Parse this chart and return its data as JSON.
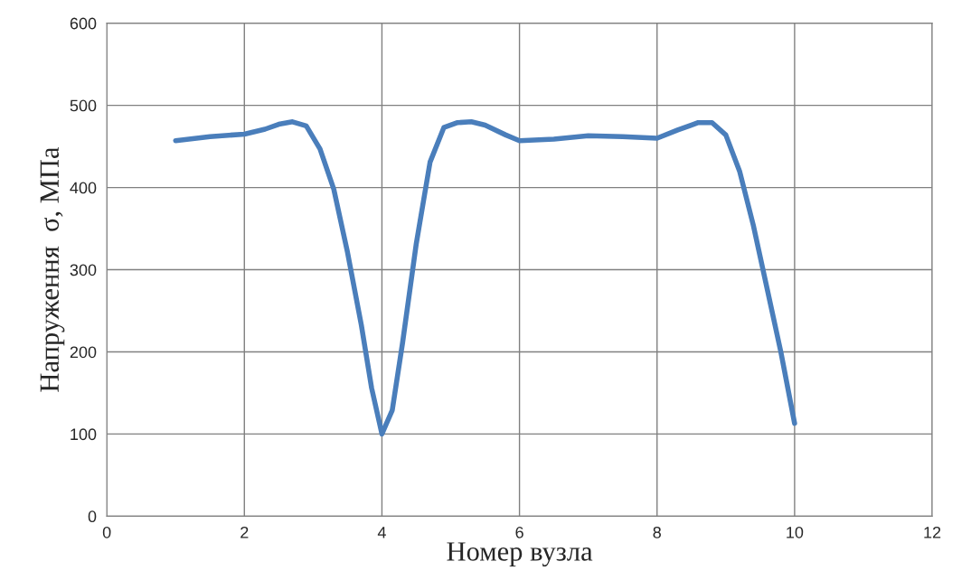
{
  "chart_data": {
    "type": "line",
    "xlabel": "Номер вузла",
    "ylabel": "Напруження  σ, МПа",
    "x": [
      1,
      1.5,
      2,
      2.3,
      2.5,
      2.7,
      2.9,
      3.1,
      3.3,
      3.5,
      3.7,
      3.85,
      4,
      4.15,
      4.3,
      4.5,
      4.7,
      4.9,
      5.1,
      5.3,
      5.5,
      5.8,
      6,
      6.5,
      7,
      7.5,
      8,
      8.3,
      8.6,
      8.8,
      9,
      9.2,
      9.4,
      9.6,
      9.8,
      10
    ],
    "series": [
      {
        "color": "#4a7ebb",
        "values": [
          457,
          462,
          465,
          471,
          477,
          480,
          475,
          447,
          398,
          321,
          233,
          156,
          100,
          129,
          211,
          332,
          431,
          473,
          479,
          480,
          476,
          464,
          457,
          459,
          463,
          462,
          460,
          470,
          479,
          479,
          464,
          420,
          354,
          277,
          200,
          113
        ]
      }
    ],
    "xlim": [
      0,
      12
    ],
    "xticks": [
      0,
      2,
      4,
      6,
      8,
      10,
      12
    ],
    "ylim": [
      0,
      600
    ],
    "yticks": [
      0,
      100,
      200,
      300,
      400,
      500,
      600
    ],
    "grid": true,
    "marker": "none",
    "line_style": "solid"
  }
}
